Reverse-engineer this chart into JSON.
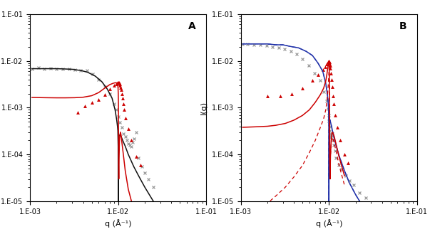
{
  "panel_A_label": "A",
  "panel_B_label": "B",
  "xlabel": "q (Å⁻¹)",
  "ylabel_A": "I(q)",
  "ylabel_B": "I(q)",
  "xlim": [
    0.001,
    0.1
  ],
  "ylim_A": [
    1e-05,
    0.1
  ],
  "ylim_B": [
    1e-05,
    0.1
  ],
  "gray_x_data_A": [
    0.00105,
    0.00125,
    0.00145,
    0.0017,
    0.002,
    0.00235,
    0.00275,
    0.0032,
    0.00375,
    0.0044,
    0.0051,
    0.006,
    0.007,
    0.008,
    0.009,
    0.0095,
    0.01,
    0.0105,
    0.011,
    0.0115,
    0.012,
    0.0125,
    0.013,
    0.0135,
    0.014,
    0.0145,
    0.015,
    0.016,
    0.017,
    0.0185,
    0.02,
    0.022,
    0.025
  ],
  "gray_x_vals_A": [
    0.0068,
    0.0072,
    0.0068,
    0.007,
    0.0068,
    0.0068,
    0.0067,
    0.0065,
    0.0063,
    0.0062,
    0.0052,
    0.004,
    0.0028,
    0.002,
    0.0012,
    0.0009,
    0.00065,
    0.00048,
    0.00038,
    0.00028,
    0.00024,
    0.0002,
    0.00017,
    0.00016,
    0.00015,
    0.00018,
    0.00022,
    0.0003,
    8.5e-05,
    5.5e-05,
    4e-05,
    3e-05,
    2e-05
  ],
  "red_tri_data_A": [
    0.0035,
    0.0042,
    0.005,
    0.006,
    0.007,
    0.008,
    0.009,
    0.0095,
    0.0097,
    0.0099,
    0.01005,
    0.0102,
    0.01035,
    0.0105,
    0.01065,
    0.0108,
    0.011,
    0.0112,
    0.0114,
    0.0116,
    0.012,
    0.013,
    0.014,
    0.016,
    0.018
  ],
  "red_tri_vals_A": [
    0.0008,
    0.0011,
    0.0013,
    0.0015,
    0.0019,
    0.0025,
    0.003,
    0.0032,
    0.0033,
    0.0034,
    0.0035,
    0.0034,
    0.0032,
    0.003,
    0.0027,
    0.0024,
    0.002,
    0.0016,
    0.0012,
    0.0009,
    0.0006,
    0.00035,
    0.0002,
    9e-05,
    6e-05
  ],
  "black_line_x_A": [
    0.00105,
    0.0013,
    0.0016,
    0.002,
    0.0025,
    0.003,
    0.0038,
    0.0045,
    0.0055,
    0.0065,
    0.0075,
    0.0085,
    0.0092,
    0.0096,
    0.0098,
    0.0099,
    0.00998,
    0.01,
    0.01002,
    0.01004,
    0.01006,
    0.01008,
    0.0101,
    0.0102,
    0.0104,
    0.0106,
    0.0108,
    0.011,
    0.0115,
    0.012,
    0.013,
    0.015,
    0.017,
    0.02,
    0.025
  ],
  "black_line_y_A": [
    0.0068,
    0.0068,
    0.0068,
    0.0068,
    0.0067,
    0.0066,
    0.0062,
    0.0057,
    0.0047,
    0.0036,
    0.0025,
    0.0016,
    0.0009,
    0.00055,
    0.0004,
    0.00032,
    0.00015,
    8e-06,
    1.5e-05,
    6.5e-05,
    0.00012,
    0.00016,
    0.00019,
    0.00025,
    0.00026,
    0.00025,
    0.00024,
    0.00022,
    0.00018,
    0.00015,
    0.0001,
    5.5e-05,
    3.5e-05,
    2e-05,
    1e-05
  ],
  "red_line_x_A": [
    0.00105,
    0.0015,
    0.002,
    0.0025,
    0.0032,
    0.004,
    0.005,
    0.006,
    0.007,
    0.008,
    0.0087,
    0.0092,
    0.0095,
    0.0097,
    0.00985,
    0.00995,
    0.01,
    0.01005,
    0.0101,
    0.01015,
    0.0102,
    0.0103,
    0.0104,
    0.0106,
    0.0108,
    0.011,
    0.0115,
    0.012,
    0.013,
    0.015
  ],
  "red_line_y_A": [
    0.00165,
    0.00163,
    0.00162,
    0.00162,
    0.00163,
    0.00167,
    0.0018,
    0.0021,
    0.0026,
    0.0031,
    0.0033,
    0.0034,
    0.0034,
    0.00335,
    0.0031,
    0.0026,
    0.002,
    0.0012,
    6e-05,
    3e-05,
    8e-05,
    0.00018,
    0.00025,
    0.0003,
    0.00025,
    0.00018,
    9e-05,
    4.5e-05,
    1.8e-05,
    6.5e-06
  ],
  "gray_x_data_B": [
    0.00105,
    0.0012,
    0.0014,
    0.00165,
    0.00195,
    0.0023,
    0.0027,
    0.00315,
    0.0037,
    0.0043,
    0.005,
    0.0059,
    0.0069,
    0.0079,
    0.0088,
    0.0094,
    0.0097,
    0.0099,
    0.01,
    0.0101,
    0.0102,
    0.0103,
    0.0104,
    0.0105,
    0.0106,
    0.0107,
    0.01085,
    0.011,
    0.0112,
    0.0114,
    0.0117,
    0.012,
    0.013,
    0.014,
    0.0155,
    0.017,
    0.019,
    0.022,
    0.026
  ],
  "gray_x_vals_B": [
    0.023,
    0.023,
    0.022,
    0.022,
    0.021,
    0.02,
    0.019,
    0.018,
    0.016,
    0.014,
    0.011,
    0.008,
    0.0055,
    0.0038,
    0.0022,
    0.0014,
    0.00095,
    0.00068,
    0.00052,
    0.0004,
    0.00032,
    0.00028,
    0.00025,
    0.00023,
    0.00024,
    0.00026,
    0.00028,
    0.00025,
    0.0002,
    0.00016,
    0.00012,
    8.5e-05,
    6e-05,
    4.8e-05,
    3.5e-05,
    2.8e-05,
    2.2e-05,
    1.5e-05,
    1.2e-05
  ],
  "red_tri_data_B": [
    0.002,
    0.0028,
    0.0038,
    0.005,
    0.0065,
    0.0075,
    0.0085,
    0.009,
    0.0094,
    0.0097,
    0.0099,
    0.01,
    0.0101,
    0.0102,
    0.0103,
    0.0104,
    0.01055,
    0.0107,
    0.0109,
    0.0111,
    0.0113,
    0.0118,
    0.0125,
    0.0135,
    0.015,
    0.0165
  ],
  "red_tri_vals_B": [
    0.0018,
    0.0018,
    0.002,
    0.0026,
    0.0038,
    0.005,
    0.0065,
    0.0075,
    0.0085,
    0.0095,
    0.0098,
    0.0098,
    0.0095,
    0.009,
    0.008,
    0.007,
    0.0055,
    0.004,
    0.0028,
    0.0018,
    0.0012,
    0.0007,
    0.00038,
    0.0002,
    0.0001,
    6.5e-05
  ],
  "navy_line_x_B": [
    0.00105,
    0.0013,
    0.0016,
    0.002,
    0.0025,
    0.003,
    0.0038,
    0.0045,
    0.0055,
    0.0065,
    0.0075,
    0.0085,
    0.0092,
    0.0096,
    0.0098,
    0.0099,
    0.00998,
    0.01,
    0.01002,
    0.01004,
    0.01006,
    0.01008,
    0.0101,
    0.01015,
    0.0102,
    0.0103,
    0.0104,
    0.0106,
    0.0108,
    0.011,
    0.0115,
    0.012,
    0.013,
    0.015,
    0.017,
    0.02,
    0.025
  ],
  "navy_line_y_B": [
    0.023,
    0.023,
    0.023,
    0.023,
    0.022,
    0.022,
    0.02,
    0.019,
    0.016,
    0.013,
    0.009,
    0.006,
    0.0033,
    0.0019,
    0.0013,
    0.0009,
    0.0004,
    8e-06,
    4e-05,
    0.00015,
    0.0003,
    0.00042,
    0.0005,
    0.00055,
    0.00056,
    0.00054,
    0.0005,
    0.00043,
    0.00037,
    0.00031,
    0.00022,
    0.00016,
    9.5e-05,
    4.5e-05,
    2.5e-05,
    1.4e-05,
    7e-06
  ],
  "navy_dashed_x_B": [
    0.00105,
    0.0013,
    0.0016,
    0.002,
    0.0025,
    0.003,
    0.0038,
    0.0045,
    0.0055,
    0.0065,
    0.0075,
    0.0085,
    0.0092,
    0.0096,
    0.0098,
    0.0099,
    0.00998,
    0.01,
    0.01002,
    0.01004,
    0.01006,
    0.01008,
    0.0101,
    0.01015,
    0.0102,
    0.0103,
    0.0104,
    0.0106,
    0.0108,
    0.011,
    0.0115,
    0.012,
    0.013,
    0.015,
    0.017,
    0.02,
    0.025
  ],
  "navy_dashed_y_B": [
    0.023,
    0.023,
    0.023,
    0.023,
    0.022,
    0.022,
    0.02,
    0.019,
    0.016,
    0.013,
    0.009,
    0.006,
    0.0033,
    0.0019,
    0.0013,
    0.0009,
    0.0004,
    8e-06,
    4e-05,
    0.00015,
    0.0003,
    0.00042,
    0.0005,
    0.00055,
    0.00056,
    0.00054,
    0.0005,
    0.00043,
    0.00037,
    0.00031,
    0.00022,
    0.00016,
    9.5e-05,
    4.5e-05,
    2.5e-05,
    1.4e-05,
    7e-06
  ],
  "red_line_x_B": [
    0.00105,
    0.0015,
    0.002,
    0.0025,
    0.0032,
    0.004,
    0.005,
    0.006,
    0.007,
    0.008,
    0.0087,
    0.0092,
    0.0095,
    0.0097,
    0.00985,
    0.00995,
    0.01,
    0.01004,
    0.01006,
    0.01008,
    0.0101,
    0.01015,
    0.0102,
    0.0103,
    0.0104,
    0.0106,
    0.0108,
    0.011,
    0.0115,
    0.012,
    0.013,
    0.015
  ],
  "red_line_y_B": [
    0.00038,
    0.00039,
    0.0004,
    0.00042,
    0.00046,
    0.00054,
    0.00068,
    0.0009,
    0.0013,
    0.0019,
    0.0026,
    0.0037,
    0.0053,
    0.0072,
    0.0088,
    0.0096,
    0.0097,
    0.0094,
    0.008,
    0.0056,
    0.0034,
    0.0016,
    8e-05,
    3e-05,
    9e-05,
    0.0002,
    0.00028,
    0.0003,
    0.00024,
    0.00017,
    9e-05,
    3.5e-05
  ],
  "red_dashed_x_B": [
    0.00105,
    0.0015,
    0.002,
    0.0025,
    0.0032,
    0.004,
    0.005,
    0.006,
    0.007,
    0.008,
    0.0087,
    0.0092,
    0.0095,
    0.0097,
    0.00985,
    0.00995,
    0.01003,
    0.01006,
    0.01008,
    0.0101,
    0.01015,
    0.0102,
    0.0103,
    0.0104,
    0.0106,
    0.0108,
    0.011,
    0.0115,
    0.012,
    0.013,
    0.015
  ],
  "red_dashed_y_B": [
    5e-06,
    6.5e-06,
    9e-06,
    1.3e-05,
    2e-05,
    3.3e-05,
    5.8e-05,
    0.00011,
    0.0002,
    0.00038,
    0.00058,
    0.0009,
    0.0014,
    0.0022,
    0.0034,
    0.005,
    0.007,
    0.0082,
    0.0072,
    0.0048,
    0.0024,
    8e-05,
    3e-05,
    9e-05,
    0.00018,
    0.00023,
    0.00023,
    0.00017,
    0.00012,
    6e-05,
    2.2e-05
  ],
  "background_color": "#ffffff",
  "gray_marker_color": "#999999",
  "red_color": "#cc0000",
  "black_color": "#111111",
  "navy_color": "#2233aa",
  "label_fontsize": 8,
  "tick_fontsize": 7,
  "panel_label_fontsize": 10
}
